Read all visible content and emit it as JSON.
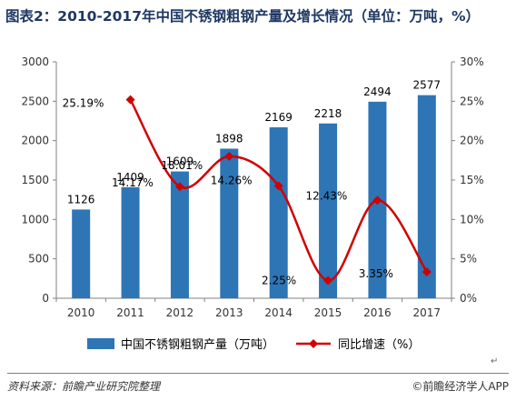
{
  "title": "图表2：2010-2017年中国不锈钢粗钢产量及增长情况（单位：万吨，%）",
  "source": "资料来源：前瞻产业研究院整理",
  "brand": "前瞻经济学人APP",
  "return_mark": "↵",
  "colors": {
    "bar": "#2e75b6",
    "line": "#d00000",
    "title": "#1f3864"
  },
  "chart_data": {
    "type": "bar+line",
    "categories": [
      "2010",
      "2011",
      "2012",
      "2013",
      "2014",
      "2015",
      "2016",
      "2017"
    ],
    "series": [
      {
        "name": "中国不锈钢粗钢产量（万吨）",
        "type": "bar",
        "axis": "left",
        "values": [
          1126,
          1409,
          1609,
          1898,
          2169,
          2218,
          2494,
          2577
        ],
        "labels": [
          "1126",
          "1409",
          "1609",
          "1898",
          "2169",
          "2218",
          "2494",
          "2577"
        ]
      },
      {
        "name": "同比增速（%）",
        "type": "line",
        "axis": "right",
        "values": [
          null,
          25.19,
          14.17,
          18.01,
          14.26,
          2.25,
          12.43,
          3.35
        ],
        "labels": [
          "",
          "25.19%",
          "14.17%",
          "18.01%",
          "14.26%",
          "2.25%",
          "12.43%",
          "3.35%"
        ]
      }
    ],
    "y_left": {
      "min": 0,
      "max": 3000,
      "ticks": [
        "0",
        "500",
        "1000",
        "1500",
        "2000",
        "2500",
        "3000"
      ]
    },
    "y_right": {
      "min": 0,
      "max": 30,
      "ticks": [
        "0%",
        "5%",
        "10%",
        "15%",
        "20%",
        "25%",
        "30%"
      ]
    },
    "grid": false,
    "legend": "bottom"
  }
}
